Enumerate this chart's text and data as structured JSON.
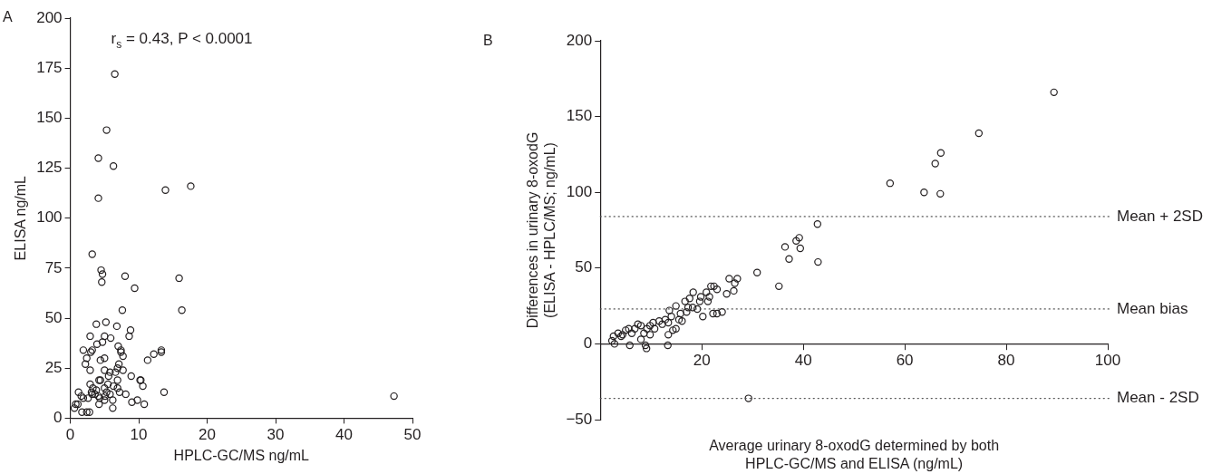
{
  "chart_data": [
    {
      "type": "scatter",
      "title": "A",
      "annotations": [
        "r$_{s}$ = 0.43, P < 0.0001"
      ],
      "xlabel": "HPLC-GC/MS ng/mL",
      "ylabel": "ELISA ng/mL",
      "xlim": [
        0,
        50
      ],
      "xticks": [
        0,
        10,
        20,
        30,
        40,
        50
      ],
      "ylim": [
        0,
        200
      ],
      "yticks": [
        0,
        25,
        50,
        75,
        100,
        125,
        150,
        175,
        200
      ],
      "grid": false,
      "legend": false,
      "marker": "circle",
      "series": [
        {
          "color": "#231f20",
          "x": [
            6.5,
            5.3,
            4.1,
            6.3,
            4.1,
            13.9,
            17.6,
            3.2,
            4.5,
            4.7,
            4.6,
            8.0,
            9.4,
            15.9,
            16.3,
            7.6,
            3.8,
            5.2,
            6.8,
            8.8,
            8.6,
            2.9,
            5.0,
            5.9,
            3.9,
            4.7,
            1.9,
            3.2,
            3.0,
            7.0,
            7.4,
            7.4,
            7.7,
            2.4,
            13.3,
            13.3,
            12.2,
            11.3,
            2.2,
            4.4,
            5.0,
            7.1,
            2.9,
            5.0,
            5.8,
            7.7,
            6.6,
            6.9,
            4.2,
            4.4,
            5.6,
            6.9,
            8.9,
            10.2,
            10.3,
            10.6,
            2.9,
            3.3,
            3.1,
            3.8,
            5.0,
            5.3,
            5.5,
            6.3,
            6.9,
            8.1,
            7.2,
            13.7,
            1.2,
            1.6,
            1.9,
            2.6,
            3.6,
            4.1,
            4.3,
            5.1,
            5.8,
            6.2,
            5.0,
            9.0,
            9.8,
            10.8,
            6.2,
            0.8,
            1.1,
            0.6,
            1.7,
            2.4,
            2.8,
            4.2,
            3.2,
            47.3
          ],
          "values": [
            172,
            144,
            130,
            126,
            110,
            114,
            116,
            82,
            74,
            72,
            68,
            71,
            65,
            70,
            54,
            54,
            47,
            48,
            46,
            44,
            41,
            41,
            41,
            40,
            37,
            38,
            34,
            34,
            33,
            36,
            34,
            33,
            31,
            30,
            34,
            33,
            32,
            29,
            27,
            29,
            30,
            27,
            24,
            24,
            23,
            24,
            23,
            25,
            19,
            19,
            21,
            19,
            21,
            19,
            19,
            16,
            17,
            15,
            13,
            14,
            15,
            13,
            17,
            16,
            15,
            12,
            13,
            13,
            13,
            11,
            10,
            10,
            12,
            11,
            10,
            11,
            12,
            9,
            9,
            8,
            9,
            7,
            5,
            7,
            7,
            5,
            3,
            3,
            3,
            7,
            12,
            11
          ]
        }
      ]
    },
    {
      "type": "scatter",
      "title": "B",
      "xlabel": "Average urinary 8-oxodG determined by both\nHPLC-GC/MS and ELISA (ng/mL)",
      "ylabel": "Differences in urinary 8-oxodG\n(ELISA - HPLC/MS; ng/mL)",
      "xlim": [
        0,
        100
      ],
      "xticks": [
        20,
        40,
        60,
        80,
        100
      ],
      "ylim": [
        -50,
        200
      ],
      "yticks": [
        {
          "value": -50,
          "label": "−50"
        },
        0,
        50,
        100,
        150,
        200
      ],
      "grid": false,
      "legend": false,
      "marker": "circle",
      "ref_lines": [
        {
          "axis": "y",
          "value": 84,
          "label": "Mean + 2SD",
          "color": "#555555",
          "line_style": "dotted"
        },
        {
          "axis": "y",
          "value": 23,
          "label": "Mean bias",
          "color": "#555555",
          "line_style": "dotted"
        },
        {
          "axis": "y",
          "value": -36,
          "label": "Mean - 2SD",
          "color": "#555555",
          "line_style": "dotted"
        }
      ],
      "series": [
        {
          "color": "#231f20",
          "x": [
            89.4,
            74.6,
            67.1,
            66.0,
            57.1,
            63.8,
            67.0,
            42.8,
            39.2,
            38.6,
            39.4,
            36.4,
            37.2,
            42.9,
            30.9,
            35.2,
            29.2,
            27.0,
            25.4,
            26.5,
            26.3,
            24.9,
            23.0,
            22.4,
            21.8,
            22.2,
            23.0,
            24.0,
            20.2,
            21.2,
            21.5,
            20.9,
            19.8,
            19.1,
            18.3,
            17.6,
            16.7,
            17.3,
            14.9,
            15.8,
            15.5,
            14.9,
            14.3,
            13.4,
            13.3,
            12.8,
            13.6,
            11.6,
            10.4,
            9.8,
            9.2,
            9.1,
            8.9,
            8.0,
            7.4,
            6.8,
            6.2,
            5.6,
            5.0,
            5.8,
            4.4,
            3.5,
            4.1,
            2.6,
            2.8,
            2.3,
            8.0,
            9.8,
            8.6,
            10.7,
            12.2,
            13.4,
            14.0,
            16.1,
            17.0,
            18.2,
            19.6
          ],
          "values": [
            166,
            139,
            126,
            119,
            106,
            100,
            99,
            79,
            70,
            68,
            63,
            64,
            56,
            54,
            47,
            38,
            -36,
            43,
            43,
            40,
            35,
            33,
            36,
            38,
            38,
            20,
            20,
            21,
            18,
            28,
            31,
            34,
            31,
            23,
            34,
            30,
            28,
            24,
            25,
            20,
            16,
            10,
            9,
            6,
            -1,
            16,
            22,
            15,
            14,
            12,
            10,
            -3,
            -1,
            12,
            13,
            10,
            7,
            10,
            9,
            -1,
            6,
            7,
            5,
            5,
            0,
            2,
            3,
            6,
            7,
            10,
            13,
            14,
            18,
            15,
            21,
            24,
            28
          ]
        }
      ]
    }
  ]
}
